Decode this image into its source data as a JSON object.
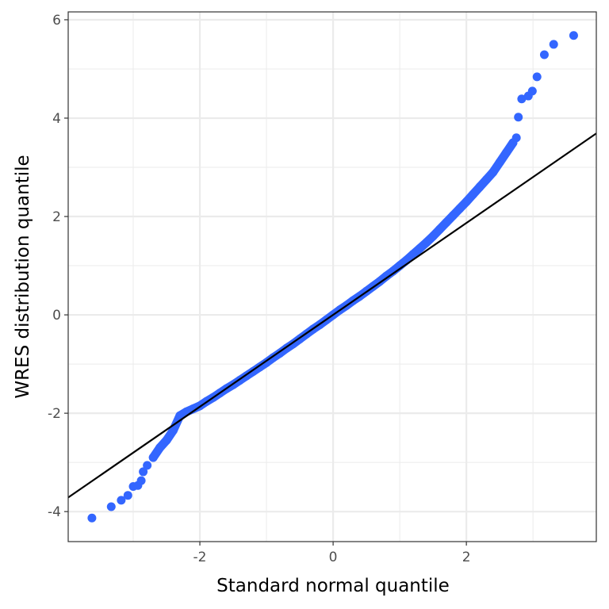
{
  "chart_data": {
    "type": "scatter",
    "title": "",
    "xlabel": "Standard normal quantile",
    "ylabel": "WRES distribution quantile",
    "xlim": [
      -3.976,
      3.95
    ],
    "ylim": [
      -4.61,
      6.16
    ],
    "x_ticks": [
      -2,
      0,
      2
    ],
    "x_tick_labels": [
      "-2",
      "0",
      "2"
    ],
    "y_ticks": [
      -4,
      -2,
      0,
      2,
      4,
      6
    ],
    "y_tick_labels": [
      "-4",
      "-2",
      "0",
      "2",
      "4",
      "6"
    ],
    "grid": true,
    "point_color": "#3366FF",
    "reference_line": {
      "slope": 0.934,
      "intercept": -0.0,
      "color": "#000000"
    },
    "points": [
      [
        -3.62,
        -4.13
      ],
      [
        -3.33,
        -3.9
      ],
      [
        -3.18,
        -3.77
      ],
      [
        -3.08,
        -3.67
      ],
      [
        -3.0,
        -3.49
      ],
      [
        -2.93,
        -3.47
      ],
      [
        -2.88,
        -3.37
      ],
      [
        -2.85,
        -3.19
      ],
      [
        -2.79,
        -3.06
      ],
      [
        -2.7,
        -2.9
      ],
      [
        -2.6,
        -2.7
      ],
      [
        -2.5,
        -2.55
      ],
      [
        -2.4,
        -2.35
      ],
      [
        -2.3,
        -2.05
      ],
      [
        -2.2,
        -1.97
      ],
      [
        -2.1,
        -1.91
      ],
      [
        -2.0,
        -1.85
      ],
      [
        -1.9,
        -1.76
      ],
      [
        -1.8,
        -1.68
      ],
      [
        -1.7,
        -1.59
      ],
      [
        -1.6,
        -1.5
      ],
      [
        -1.5,
        -1.42
      ],
      [
        -1.4,
        -1.33
      ],
      [
        -1.3,
        -1.24
      ],
      [
        -1.2,
        -1.15
      ],
      [
        -1.1,
        -1.06
      ],
      [
        -1.0,
        -0.97
      ],
      [
        -0.9,
        -0.87
      ],
      [
        -0.8,
        -0.78
      ],
      [
        -0.7,
        -0.68
      ],
      [
        -0.6,
        -0.59
      ],
      [
        -0.5,
        -0.49
      ],
      [
        -0.4,
        -0.39
      ],
      [
        -0.3,
        -0.29
      ],
      [
        -0.2,
        -0.2
      ],
      [
        -0.1,
        -0.1
      ],
      [
        0.0,
        0.0
      ],
      [
        0.1,
        0.1
      ],
      [
        0.2,
        0.19
      ],
      [
        0.3,
        0.29
      ],
      [
        0.4,
        0.38
      ],
      [
        0.5,
        0.48
      ],
      [
        0.6,
        0.58
      ],
      [
        0.7,
        0.68
      ],
      [
        0.8,
        0.79
      ],
      [
        0.9,
        0.89
      ],
      [
        1.0,
        1.0
      ],
      [
        1.1,
        1.11
      ],
      [
        1.2,
        1.23
      ],
      [
        1.3,
        1.35
      ],
      [
        1.4,
        1.47
      ],
      [
        1.5,
        1.6
      ],
      [
        1.6,
        1.74
      ],
      [
        1.7,
        1.88
      ],
      [
        1.8,
        2.02
      ],
      [
        1.9,
        2.16
      ],
      [
        2.0,
        2.3
      ],
      [
        2.1,
        2.45
      ],
      [
        2.2,
        2.6
      ],
      [
        2.3,
        2.75
      ],
      [
        2.4,
        2.9
      ],
      [
        2.5,
        3.1
      ],
      [
        2.6,
        3.3
      ],
      [
        2.7,
        3.5
      ],
      [
        2.75,
        3.6
      ],
      [
        2.78,
        4.02
      ],
      [
        2.83,
        4.39
      ],
      [
        2.93,
        4.45
      ],
      [
        2.99,
        4.55
      ],
      [
        3.06,
        4.84
      ],
      [
        3.17,
        5.29
      ],
      [
        3.31,
        5.5
      ],
      [
        3.61,
        5.68
      ]
    ]
  }
}
